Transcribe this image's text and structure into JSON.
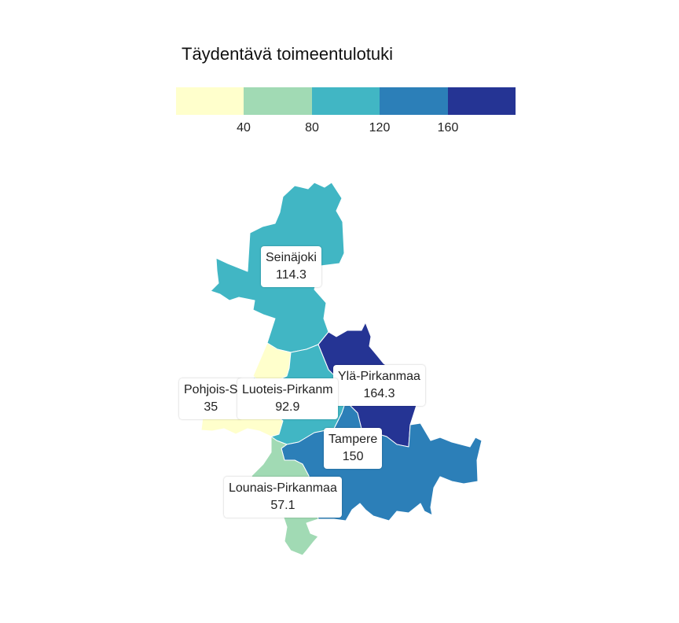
{
  "legend": {
    "title": "Täydentävä toimeentulotuki",
    "colors": [
      "#ffffcc",
      "#a1dab4",
      "#41b6c4",
      "#2c7fb8",
      "#253494"
    ],
    "ticks": [
      "40",
      "80",
      "120",
      "160"
    ]
  },
  "regions": [
    {
      "id": "seinajoki",
      "name": "Seinäjoki",
      "value": "114.3",
      "color": "#41b6c4"
    },
    {
      "id": "yla-pirkanmaa",
      "name": "Ylä-Pirkanmaa",
      "value": "164.3",
      "color": "#253494"
    },
    {
      "id": "pohjois-satakunta",
      "name": "Pohjois-S",
      "value": "35",
      "color": "#ffffcc"
    },
    {
      "id": "luoteis-pirkanmaa",
      "name": "Luoteis-Pirkanm",
      "value": "92.9",
      "color": "#41b6c4"
    },
    {
      "id": "tampere",
      "name": "Tampere",
      "value": "150",
      "color": "#2c7fb8"
    },
    {
      "id": "lounais-pirkanmaa",
      "name": "Lounais-Pirkanmaa",
      "value": "57.1",
      "color": "#a1dab4"
    }
  ]
}
